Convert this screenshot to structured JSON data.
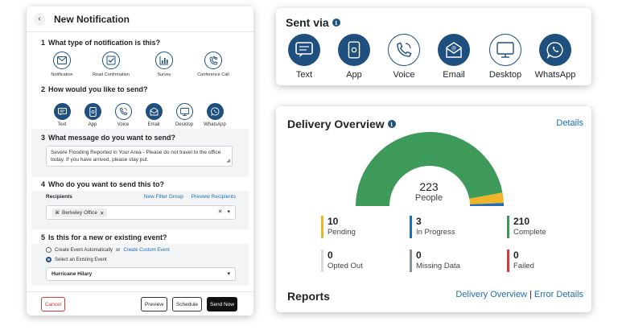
{
  "new_notification": {
    "title": "New Notification",
    "q1": {
      "num": "1",
      "text": "What type of notification is this?"
    },
    "types": [
      {
        "label": "Notification",
        "icon": "envelope-icon"
      },
      {
        "label": "Read Confirmation",
        "icon": "checkbox-icon"
      },
      {
        "label": "Survey",
        "icon": "bar-chart-icon"
      },
      {
        "label": "Conference Call",
        "icon": "conference-call-icon"
      }
    ],
    "q2": {
      "num": "2",
      "text": "How would you like to send?"
    },
    "send_options": [
      {
        "label": "Text",
        "icon": "chat-icon",
        "selected": true
      },
      {
        "label": "App",
        "icon": "mobile-app-icon",
        "selected": true
      },
      {
        "label": "Voice",
        "icon": "phone-icon",
        "selected": false
      },
      {
        "label": "Email",
        "icon": "email-icon",
        "selected": true
      },
      {
        "label": "Desktop",
        "icon": "desktop-icon",
        "selected": false
      },
      {
        "label": "WhatsApp",
        "icon": "whatsapp-icon",
        "selected": true
      }
    ],
    "q3": {
      "num": "3",
      "text": "What message do you want to send?"
    },
    "message": "Severe Flooding Reported in Your Area - Please do not travel to the office today. If you have arrived, please stay put.",
    "q4": {
      "num": "4",
      "text": "Who do you want to send this to?"
    },
    "recipients_label": "Recipients",
    "new_filter_group": "New Filter Group",
    "preview_recipients": "Preview Recipients",
    "recipient_chip": "Berkeley Office",
    "q5": {
      "num": "5",
      "text": "Is this for a new or existing event?"
    },
    "create_auto": "Create Event Automatically",
    "or_text": "or",
    "create_custom": "Create Custom Event",
    "select_existing": "Select an Existing Event",
    "event_value": "Hurricane Hilary",
    "buttons": {
      "cancel": "Cancel",
      "preview": "Preview",
      "schedule": "Schedule",
      "send_now": "Send Now"
    }
  },
  "sent_via": {
    "title": "Sent via",
    "channels": [
      {
        "label": "Text",
        "icon": "chat-icon",
        "filled": true
      },
      {
        "label": "App",
        "icon": "mobile-app-icon",
        "filled": true
      },
      {
        "label": "Voice",
        "icon": "phone-icon",
        "filled": false
      },
      {
        "label": "Email",
        "icon": "email-icon",
        "filled": true
      },
      {
        "label": "Desktop",
        "icon": "desktop-icon",
        "filled": false
      },
      {
        "label": "WhatsApp",
        "icon": "whatsapp-icon",
        "filled": true
      }
    ]
  },
  "delivery": {
    "title": "Delivery Overview",
    "details": "Details",
    "total": "223",
    "total_label": "People",
    "gauge": [
      {
        "name": "Complete",
        "value": 210,
        "color": "#3d9a5b"
      },
      {
        "name": "Pending",
        "value": 10,
        "color": "#f0b429"
      },
      {
        "name": "In Progress",
        "value": 3,
        "color": "#1e6fb5"
      }
    ],
    "stats": [
      {
        "value": "10",
        "label": "Pending",
        "color": "#f0b429"
      },
      {
        "value": "3",
        "label": "In Progress",
        "color": "#1e6fb5"
      },
      {
        "value": "210",
        "label": "Complete",
        "color": "#3d9a5b"
      },
      {
        "value": "0",
        "label": "Opted Out",
        "color": "#d7dade"
      },
      {
        "value": "0",
        "label": "Missing Data",
        "color": "#8a8f96"
      },
      {
        "value": "0",
        "label": "Failed",
        "color": "#d23b3b"
      }
    ],
    "reports_title": "Reports",
    "reports_link_overview": "Delivery Overview",
    "reports_sep": "|",
    "reports_link_errors": "Error Details"
  },
  "colors": {
    "accent": "#1e4f7e",
    "link": "#1e6fb5"
  }
}
